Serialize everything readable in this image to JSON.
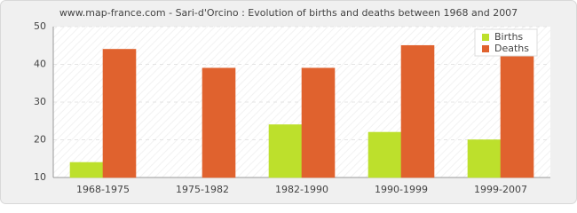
{
  "chart_data": {
    "type": "bar",
    "title": "www.map-france.com - Sari-d'Orcino : Evolution of births and deaths between 1968 and 2007",
    "categories": [
      "1968-1975",
      "1975-1982",
      "1982-1990",
      "1990-1999",
      "1999-2007"
    ],
    "series": [
      {
        "name": "Births",
        "color": "#bde02c",
        "values": [
          14,
          10,
          24,
          22,
          20
        ]
      },
      {
        "name": "Deaths",
        "color": "#e0622e",
        "values": [
          44,
          39,
          39,
          45,
          43
        ]
      }
    ],
    "ylim": [
      10,
      50
    ],
    "yticks": [
      10,
      20,
      30,
      40,
      50
    ],
    "grid": true,
    "legend": "top-right"
  }
}
